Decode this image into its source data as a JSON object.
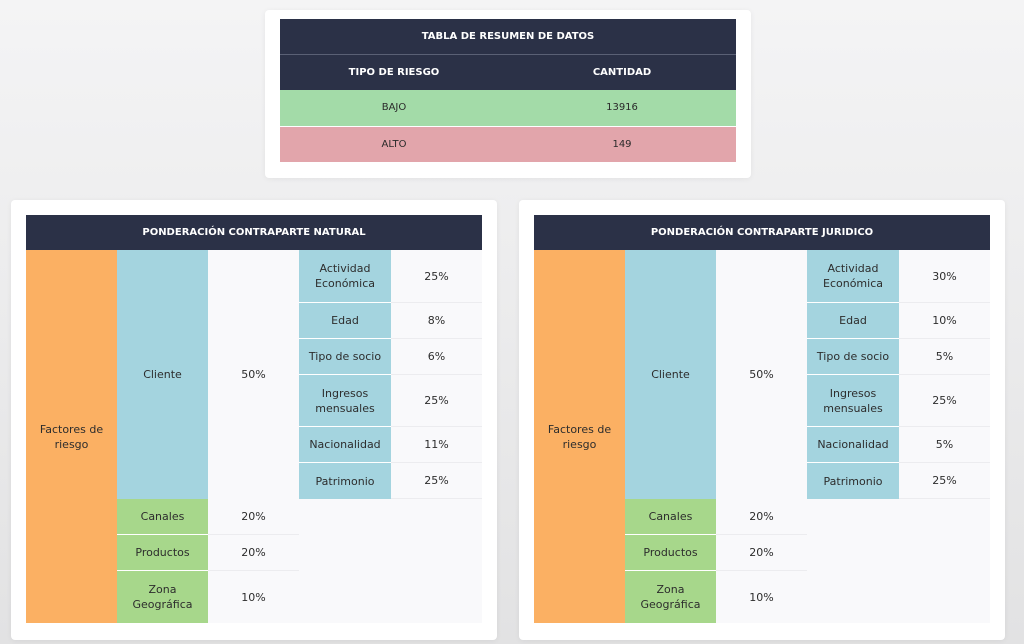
{
  "summary": {
    "title": "TABLA DE RESUMEN DE DATOS",
    "columns": [
      "TIPO DE RIESGO",
      "CANTIDAD"
    ],
    "rows": [
      {
        "tipo": "BAJO",
        "cantidad": "13916"
      },
      {
        "tipo": "ALTO",
        "cantidad": "149"
      }
    ],
    "colors": {
      "header": "#2b3147",
      "bajo": "#a3dba8",
      "alto": "#e2a5ab"
    }
  },
  "natural": {
    "title": "PONDERACIÓN CONTRAPARTE NATURAL",
    "factores_label": "Factores de riesgo",
    "cliente": {
      "label": "Cliente",
      "pct": "50%"
    },
    "sub": [
      {
        "label": "Actividad Económica",
        "pct": "25%"
      },
      {
        "label": "Edad",
        "pct": "8%"
      },
      {
        "label": "Tipo de socio",
        "pct": "6%"
      },
      {
        "label": "Ingresos mensuales",
        "pct": "25%"
      },
      {
        "label": "Nacionalidad",
        "pct": "11%"
      },
      {
        "label": "Patrimonio",
        "pct": "25%"
      }
    ],
    "others": [
      {
        "label": "Canales",
        "pct": "20%"
      },
      {
        "label": "Productos",
        "pct": "20%"
      },
      {
        "label": "Zona Geográfica",
        "pct": "10%"
      }
    ]
  },
  "juridico": {
    "title": "PONDERACIÓN CONTRAPARTE JURIDICO",
    "factores_label": "Factores de riesgo",
    "cliente": {
      "label": "Cliente",
      "pct": "50%"
    },
    "sub": [
      {
        "label": "Actividad Económica",
        "pct": "30%"
      },
      {
        "label": "Edad",
        "pct": "10%"
      },
      {
        "label": "Tipo de socio",
        "pct": "5%"
      },
      {
        "label": "Ingresos mensuales",
        "pct": "25%"
      },
      {
        "label": "Nacionalidad",
        "pct": "5%"
      },
      {
        "label": "Patrimonio",
        "pct": "25%"
      }
    ],
    "others": [
      {
        "label": "Canales",
        "pct": "20%"
      },
      {
        "label": "Productos",
        "pct": "20%"
      },
      {
        "label": "Zona Geográfica",
        "pct": "10%"
      }
    ]
  },
  "colors": {
    "factores": "#fbb063",
    "cliente": "#a4d4df",
    "others": "#a7d78b"
  }
}
